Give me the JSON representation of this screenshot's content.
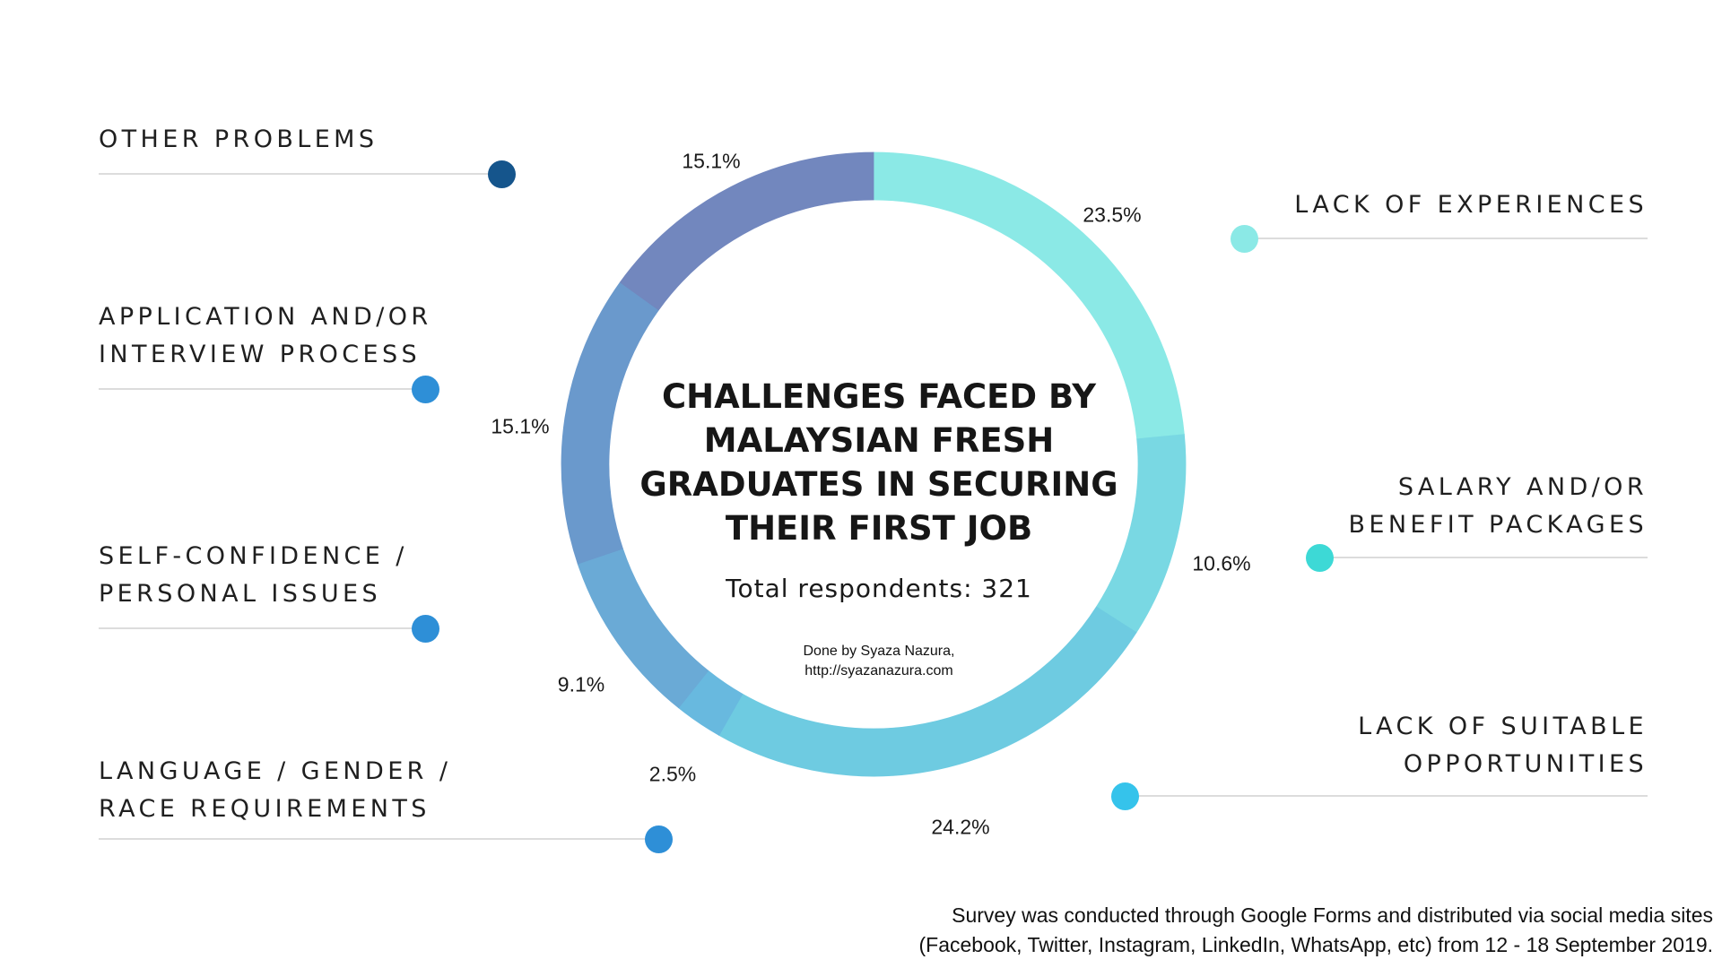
{
  "chart_data": {
    "type": "pie",
    "variant": "donut",
    "title": "CHALLENGES FACED BY MALAYSIAN FRESH GRADUATES IN SECURING THEIR FIRST JOB",
    "title_lines": [
      "CHALLENGES FACED BY",
      "MALAYSIAN FRESH",
      "GRADUATES IN SECURING",
      "THEIR FIRST JOB"
    ],
    "subtitle": "Total respondents: 321",
    "credit_lines": [
      "Done by Syaza Nazura,",
      "http://syazanazura.com"
    ],
    "slices": [
      {
        "label": "LACK OF EXPERIENCES",
        "label_lines": [
          "LACK OF EXPERIENCES"
        ],
        "value": 23.5,
        "value_label": "23.5%",
        "color": "#8BE9E6",
        "dot_color": "#8BE9E6"
      },
      {
        "label": "SALARY AND/OR BENEFIT PACKAGES",
        "label_lines": [
          "SALARY AND/OR",
          "BENEFIT PACKAGES"
        ],
        "value": 10.6,
        "value_label": "10.6%",
        "color": "#79D8E3",
        "dot_color": "#3DD9D6"
      },
      {
        "label": "LACK OF SUITABLE OPPORTUNITIES",
        "label_lines": [
          "LACK OF SUITABLE",
          "OPPORTUNITIES"
        ],
        "value": 24.2,
        "value_label": "24.2%",
        "color": "#6ECBE1",
        "dot_color": "#35C3EB"
      },
      {
        "label": "LANGUAGE / GENDER / RACE REQUIREMENTS",
        "label_lines": [
          "LANGUAGE / GENDER /",
          "RACE REQUIREMENTS"
        ],
        "value": 2.5,
        "value_label": "2.5%",
        "color": "#68B9DF",
        "dot_color": "#2E8FD7"
      },
      {
        "label": "SELF-CONFIDENCE / PERSONAL ISSUES",
        "label_lines": [
          "SELF-CONFIDENCE /",
          "PERSONAL ISSUES"
        ],
        "value": 9.1,
        "value_label": "9.1%",
        "color": "#6AAAD6",
        "dot_color": "#2E8FD7"
      },
      {
        "label": "APPLICATION AND/OR INTERVIEW PROCESS",
        "label_lines": [
          "APPLICATION AND/OR",
          "INTERVIEW PROCESS"
        ],
        "value": 15.1,
        "value_label": "15.1%",
        "color": "#6A99CC",
        "dot_color": "#2E8FD7"
      },
      {
        "label": "OTHER PROBLEMS",
        "label_lines": [
          "OTHER PROBLEMS"
        ],
        "value": 15.1,
        "value_label": "15.1%",
        "color": "#7287BE",
        "dot_color": "#15558C"
      }
    ]
  },
  "footnote": {
    "lines": [
      "Survey was conducted through Google Forms and distributed via social media sites",
      "(Facebook, Twitter, Instagram, LinkedIn, WhatsApp, etc) from 12 - 18 September 2019."
    ]
  }
}
